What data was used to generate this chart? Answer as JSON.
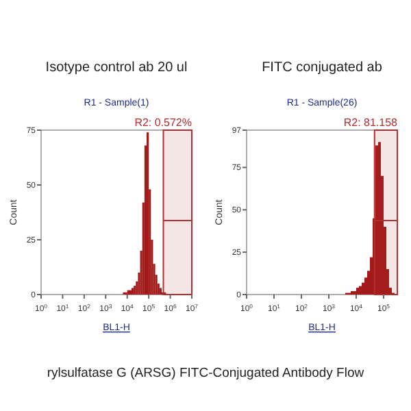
{
  "chart_data": [
    {
      "type": "histogram",
      "title": "Isotype control ab 20 ul",
      "subtitle": "R1 - Sample(1)",
      "xlabel": "BL1-H",
      "ylabel": "Count",
      "color": "#a31a1a",
      "log": "x",
      "bins": [
        6310,
        10000,
        15849,
        19953,
        25119,
        31623,
        39811,
        50119,
        63096,
        79433,
        100000,
        125893,
        158489,
        199526,
        251189,
        316228,
        398107,
        630957
      ],
      "values": [
        1,
        2,
        3,
        4,
        6,
        10,
        20,
        42,
        68,
        74,
        48,
        25,
        14,
        9,
        5,
        3,
        1
      ],
      "xlim": [
        1,
        10000000
      ],
      "xticks": [
        {
          "value": 1,
          "label": "10$^{0}$"
        },
        {
          "value": 10,
          "label": "10$^{1}$"
        },
        {
          "value": 100,
          "label": "10$^{2}$"
        },
        {
          "value": 1000,
          "label": "10$^{3}$"
        },
        {
          "value": 10000,
          "label": "10$^{4}$"
        },
        {
          "value": 100000,
          "label": "10$^{5}$"
        },
        {
          "value": 1000000,
          "label": "10$^{6}$"
        },
        {
          "value": 10000000,
          "label": "10$^{7}$"
        }
      ],
      "ylim": [
        0,
        75
      ],
      "yticks": [
        0,
        25,
        50,
        75
      ],
      "bands": [
        {
          "axis": "x",
          "from": 478630,
          "to": 10000000,
          "label": "R2: 0.572%",
          "color": "#b03030"
        }
      ],
      "annotations": [
        "rylsulfatase G (ARSG) FITC-Conjugated Antibody Flow"
      ]
    },
    {
      "type": "histogram",
      "title": "FITC conjugated ab",
      "subtitle": "R1 - Sample(26)",
      "xlabel": "BL1-H",
      "ylabel": "Count",
      "color": "#a31a1a",
      "log": "x",
      "bins": [
        3981,
        6310,
        10000,
        12589,
        15849,
        19953,
        25119,
        31623,
        39811,
        50119,
        63096,
        79433,
        100000,
        125893,
        158489,
        199526,
        251189
      ],
      "values": [
        1,
        2,
        4,
        5,
        7,
        10,
        14,
        22,
        45,
        88,
        90,
        70,
        40,
        15,
        4,
        1
      ],
      "xlim": [
        1,
        316228
      ],
      "xticks": [
        {
          "value": 1,
          "label": "10$^{0}$"
        },
        {
          "value": 10,
          "label": "10$^{1}$"
        },
        {
          "value": 100,
          "label": "10$^{2}$"
        },
        {
          "value": 1000,
          "label": "10$^{3}$"
        },
        {
          "value": 10000,
          "label": "10$^{4}$"
        },
        {
          "value": 100000,
          "label": "10$^{5}$"
        }
      ],
      "ylim": [
        0,
        97
      ],
      "yticks": [
        0,
        25,
        50,
        75,
        97
      ],
      "bands": [
        {
          "axis": "x",
          "from": 46774,
          "to": 316228,
          "label": "R2: 81.158",
          "color": "#b03030"
        }
      ]
    }
  ]
}
